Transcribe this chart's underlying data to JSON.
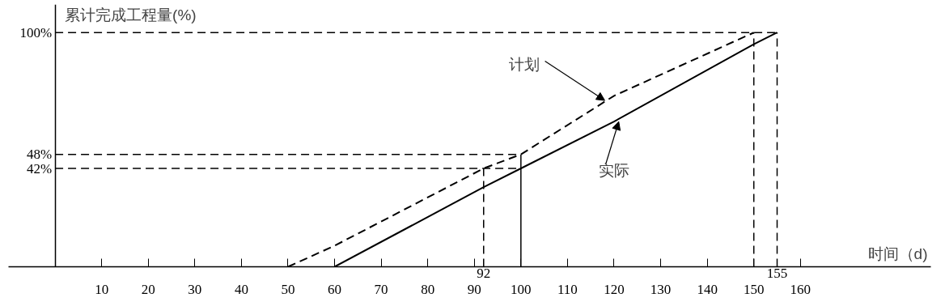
{
  "chart_data": {
    "type": "line",
    "xlabel": "时间（d)",
    "ylabel": "累计完成工程量(%)",
    "xlim": [
      -10,
      188
    ],
    "ylim": [
      0,
      112
    ],
    "xticks": [
      10,
      20,
      30,
      40,
      50,
      60,
      70,
      80,
      90,
      100,
      110,
      120,
      130,
      140,
      150,
      160
    ],
    "yticks": [
      {
        "value": 42,
        "label": "42%"
      },
      {
        "value": 48,
        "label": "48%"
      },
      {
        "value": 100,
        "label": "100%"
      }
    ],
    "series": [
      {
        "x": [
          50,
          60,
          92,
          100,
          120,
          150
        ],
        "values": [
          0,
          9,
          42,
          48,
          73,
          100
        ],
        "color": "#000000",
        "line_style": "dashed"
      },
      {
        "x": [
          60,
          92,
          100,
          120,
          150,
          155
        ],
        "values": [
          0,
          34,
          42,
          62,
          95,
          100
        ],
        "color": "#000000",
        "line_style": "solid"
      }
    ],
    "ref_lines": [
      {
        "axis": "y",
        "value": 42,
        "line_style": "dashed"
      },
      {
        "axis": "y",
        "value": 48,
        "line_style": "dashed"
      },
      {
        "axis": "y",
        "value": 100,
        "line_style": "dashed"
      },
      {
        "axis": "x",
        "value": 92,
        "label": "92",
        "line_style": "dashed"
      },
      {
        "axis": "x",
        "value": 100,
        "line_style": "solid"
      },
      {
        "axis": "x",
        "value": 150,
        "line_style": "dashed"
      },
      {
        "axis": "x",
        "value": 155,
        "label": "155",
        "line_style": "dashed"
      }
    ],
    "annotations": [
      {
        "text": "计划",
        "x": 118,
        "y": 71
      },
      {
        "text": "实际",
        "x": 121,
        "y": 62
      }
    ],
    "grid": false,
    "marker": "none"
  }
}
